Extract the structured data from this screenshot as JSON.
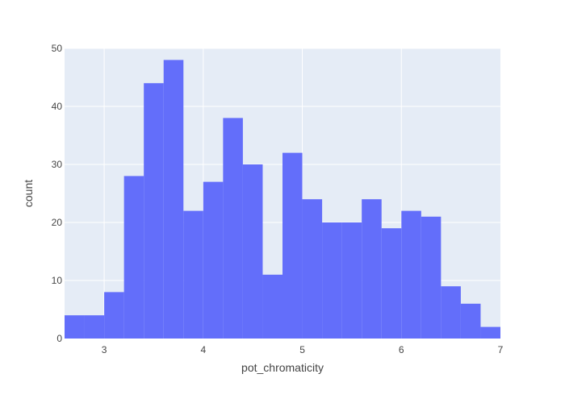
{
  "chart_data": {
    "type": "bar",
    "xlabel": "pot_chromaticity",
    "ylabel": "count",
    "xlim": [
      2.6,
      7.0
    ],
    "ylim": [
      0,
      50
    ],
    "bin_width": 0.2,
    "bins": [
      {
        "x0": 2.6,
        "x1": 2.8,
        "count": 4
      },
      {
        "x0": 2.8,
        "x1": 3.0,
        "count": 4
      },
      {
        "x0": 3.0,
        "x1": 3.2,
        "count": 8
      },
      {
        "x0": 3.2,
        "x1": 3.4,
        "count": 28
      },
      {
        "x0": 3.4,
        "x1": 3.6,
        "count": 44
      },
      {
        "x0": 3.6,
        "x1": 3.8,
        "count": 48
      },
      {
        "x0": 3.8,
        "x1": 4.0,
        "count": 22
      },
      {
        "x0": 4.0,
        "x1": 4.2,
        "count": 27
      },
      {
        "x0": 4.2,
        "x1": 4.4,
        "count": 38
      },
      {
        "x0": 4.4,
        "x1": 4.6,
        "count": 30
      },
      {
        "x0": 4.6,
        "x1": 4.8,
        "count": 11
      },
      {
        "x0": 4.8,
        "x1": 5.0,
        "count": 32
      },
      {
        "x0": 5.0,
        "x1": 5.2,
        "count": 24
      },
      {
        "x0": 5.2,
        "x1": 5.4,
        "count": 20
      },
      {
        "x0": 5.4,
        "x1": 5.6,
        "count": 20
      },
      {
        "x0": 5.6,
        "x1": 5.8,
        "count": 24
      },
      {
        "x0": 5.8,
        "x1": 6.0,
        "count": 19
      },
      {
        "x0": 6.0,
        "x1": 6.2,
        "count": 22
      },
      {
        "x0": 6.2,
        "x1": 6.4,
        "count": 21
      },
      {
        "x0": 6.4,
        "x1": 6.6,
        "count": 9
      },
      {
        "x0": 6.6,
        "x1": 6.8,
        "count": 6
      },
      {
        "x0": 6.8,
        "x1": 7.0,
        "count": 2
      }
    ],
    "x_ticks": [
      "3",
      "4",
      "5",
      "6",
      "7"
    ],
    "y_ticks": [
      "0",
      "10",
      "20",
      "30",
      "40",
      "50"
    ],
    "grid": true,
    "legend": "none",
    "colors": {
      "bar": "#636efa",
      "plot_background": "#e5ecf6",
      "gridline": "#ffffff",
      "text": "#444444"
    }
  }
}
